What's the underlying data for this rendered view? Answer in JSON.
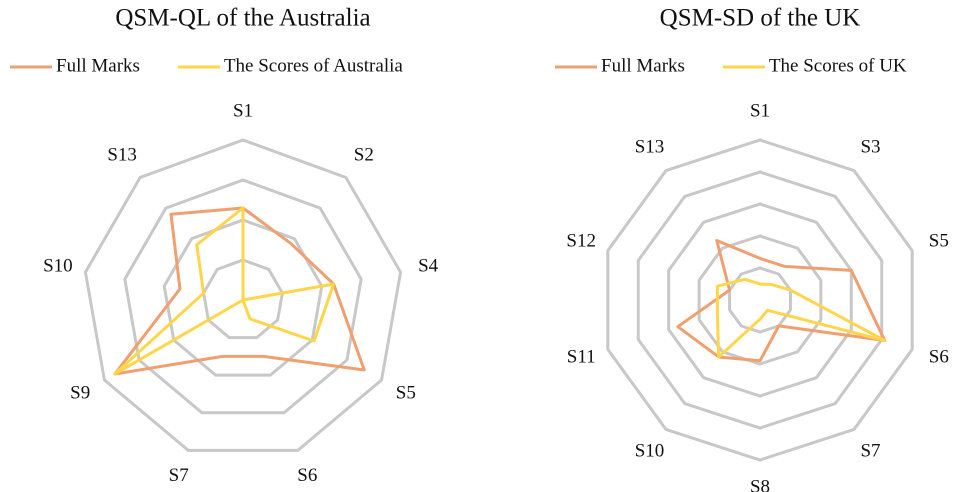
{
  "chart_data": [
    {
      "type": "radar",
      "title": "QSM-QL of the Australia",
      "categories": [
        "S1",
        "S2",
        "S4",
        "S5",
        "S6",
        "S7",
        "S9",
        "S10",
        "S13"
      ],
      "series": [
        {
          "name": "Full Marks",
          "color": "#f0a070",
          "values": [
            2.3,
            1.85,
            2.3,
            3.5,
            1.5,
            1.5,
            3.7,
            1.6,
            2.8
          ]
        },
        {
          "name": "The Scores of Australia",
          "color": "#ffd54a",
          "values": [
            2.3,
            0,
            2.3,
            2.05,
            0.5,
            0,
            3.7,
            1.0,
            1.8
          ]
        }
      ],
      "rlim": [
        0,
        4
      ],
      "rticks": [
        1,
        2,
        3,
        4
      ]
    },
    {
      "type": "radar",
      "title": "QSM-SD of the UK",
      "categories": [
        "S1",
        "S3",
        "S5",
        "S6",
        "S7",
        "S8",
        "S10",
        "S11",
        "S12",
        "S13"
      ],
      "series": [
        {
          "name": "Full Marks",
          "color": "#f0a070",
          "values": [
            1.3,
            1.3,
            3.0,
            4.1,
            1.0,
            1.9,
            2.2,
            2.7,
            1.0,
            2.3
          ]
        },
        {
          "name": "The Scores of UK",
          "color": "#ffd54a",
          "values": [
            0.5,
            0.6,
            1.0,
            4.1,
            0.4,
            0.6,
            2.2,
            1.4,
            1.4,
            0.8
          ]
        }
      ],
      "rlim": [
        0,
        5
      ],
      "rticks": [
        1,
        2,
        3,
        4,
        5
      ]
    }
  ]
}
